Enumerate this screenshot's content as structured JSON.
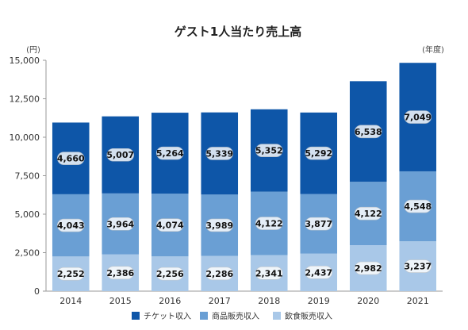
{
  "chart_data": {
    "type": "bar",
    "stacked": true,
    "title": "ゲスト1人当たり売上高",
    "y_unit": "(円)",
    "x_unit": "(年度)",
    "categories": [
      "2014",
      "2015",
      "2016",
      "2017",
      "2018",
      "2019",
      "2020",
      "2021"
    ],
    "ylim": [
      0,
      15000
    ],
    "yticks": [
      0,
      2500,
      5000,
      7500,
      10000,
      12500,
      15000
    ],
    "ytick_labels": [
      "0",
      "2,500",
      "5,000",
      "7,500",
      "10,000",
      "12,500",
      "15,000"
    ],
    "grid": false,
    "legend_position": "bottom",
    "series": [
      {
        "name": "飲食販売収入",
        "color": "#a9c8e8",
        "values": [
          2252,
          2386,
          2256,
          2286,
          2341,
          2437,
          2982,
          3237
        ],
        "labels": [
          "2,252",
          "2,386",
          "2,256",
          "2,286",
          "2,341",
          "2,437",
          "2,982",
          "3,237"
        ]
      },
      {
        "name": "商品販売収入",
        "color": "#6a9fd4",
        "values": [
          4043,
          3964,
          4074,
          3989,
          4122,
          3877,
          4122,
          4548
        ],
        "labels": [
          "4,043",
          "3,964",
          "4,074",
          "3,989",
          "4,122",
          "3,877",
          "4,122",
          "4,548"
        ]
      },
      {
        "name": "チケット収入",
        "color": "#0e56a8",
        "values": [
          4660,
          5007,
          5264,
          5339,
          5352,
          5292,
          6538,
          7049
        ],
        "labels": [
          "4,660",
          "5,007",
          "5,264",
          "5,339",
          "5,352",
          "5,292",
          "6,538",
          "7,049"
        ]
      }
    ],
    "legend_order": [
      "チケット収入",
      "商品販売収入",
      "飲食販売収入"
    ]
  }
}
